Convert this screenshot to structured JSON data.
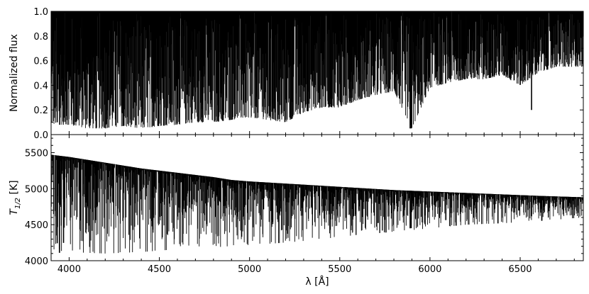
{
  "chart_data": [
    {
      "type": "line",
      "panel": "top",
      "title": "",
      "xlabel": "",
      "ylabel": "Normalized flux",
      "xlim": [
        3900,
        6850
      ],
      "ylim": [
        0.0,
        1.0
      ],
      "yticks": [
        "0.0",
        "0.2",
        "0.4",
        "0.6",
        "0.8",
        "1.0"
      ],
      "ytick_values": [
        0.0,
        0.2,
        0.4,
        0.6,
        0.8,
        1.0
      ],
      "xticks_shown": false,
      "grid": false,
      "line_color": "#000000",
      "series": [
        {
          "continuum": 1.0,
          "envelope_x": [
            3900,
            4000,
            4100,
            4200,
            4300,
            4400,
            4500,
            4600,
            4700,
            4800,
            4900,
            5000,
            5100,
            5200,
            5300,
            5400,
            5500,
            5600,
            5700,
            5800,
            5900,
            6000,
            6100,
            6200,
            6300,
            6400,
            6500,
            6600,
            6700,
            6800,
            6850
          ],
          "envelope_lower": [
            0.08,
            0.08,
            0.05,
            0.05,
            0.07,
            0.05,
            0.07,
            0.08,
            0.1,
            0.1,
            0.12,
            0.14,
            0.12,
            0.1,
            0.18,
            0.22,
            0.22,
            0.28,
            0.32,
            0.35,
            0.05,
            0.38,
            0.42,
            0.45,
            0.45,
            0.48,
            0.4,
            0.5,
            0.55,
            0.55,
            0.55
          ],
          "strong_lines": [
            {
              "x": 3934,
              "depth": 0.9
            },
            {
              "x": 3969,
              "depth": 0.9
            },
            {
              "x": 4102,
              "depth": 0.5
            },
            {
              "x": 4340,
              "depth": 0.45
            },
            {
              "x": 4861,
              "depth": 0.4
            },
            {
              "x": 5890,
              "depth": 0.95
            },
            {
              "x": 5896,
              "depth": 0.95
            },
            {
              "x": 6563,
              "depth": 0.8
            }
          ]
        }
      ]
    },
    {
      "type": "line",
      "panel": "bottom",
      "title": "",
      "xlabel": "λ [Å]",
      "ylabel": "T1/2 [K]",
      "ylabel_main": "T",
      "ylabel_sub": "1/2",
      "ylabel_unit": " [K]",
      "xlim": [
        3900,
        6850
      ],
      "ylim": [
        4000,
        5750
      ],
      "xticks": [
        "4000",
        "4500",
        "5000",
        "5500",
        "6000",
        "6500"
      ],
      "xtick_values": [
        4000,
        4500,
        5000,
        5500,
        6000,
        6500
      ],
      "yticks": [
        "4000",
        "4500",
        "5000",
        "5500"
      ],
      "ytick_values": [
        4000,
        4500,
        5000,
        5500
      ],
      "grid": false,
      "line_color": "#000000",
      "series": [
        {
          "upper_envelope_x": [
            3900,
            4000,
            4100,
            4200,
            4300,
            4400,
            4500,
            4600,
            4700,
            4800,
            4900,
            5000,
            5200,
            5400,
            5600,
            5800,
            6000,
            6200,
            6400,
            6600,
            6850
          ],
          "upper_envelope_y": [
            5470,
            5440,
            5400,
            5360,
            5320,
            5280,
            5250,
            5220,
            5190,
            5160,
            5120,
            5100,
            5070,
            5040,
            5010,
            4980,
            4960,
            4940,
            4920,
            4900,
            4880
          ],
          "lower_envelope_x": [
            3900,
            4000,
            4200,
            4400,
            4600,
            4800,
            5000,
            5200,
            5400,
            5600,
            5800,
            6000,
            6200,
            6400,
            6600,
            6850
          ],
          "lower_envelope_y": [
            4100,
            4120,
            4100,
            4120,
            4160,
            4180,
            4220,
            4250,
            4300,
            4360,
            4400,
            4450,
            4500,
            4520,
            4550,
            4600
          ],
          "strong_lines": [
            {
              "x": 3934,
              "depth": 0.9
            },
            {
              "x": 3969,
              "depth": 0.9
            },
            {
              "x": 4102,
              "depth": 0.5
            },
            {
              "x": 4340,
              "depth": 0.45
            },
            {
              "x": 4861,
              "depth": 0.4
            },
            {
              "x": 5890,
              "depth": 0.95
            },
            {
              "x": 5896,
              "depth": 0.95
            },
            {
              "x": 6563,
              "depth": 0.8
            }
          ]
        }
      ]
    }
  ]
}
